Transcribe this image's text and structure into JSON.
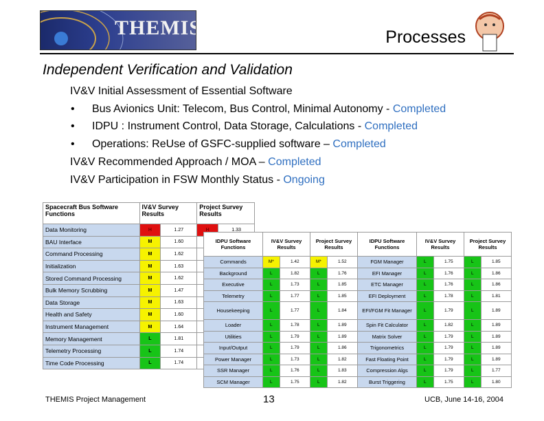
{
  "header": {
    "logo_text": "THEMIS",
    "slide_title": "Processes"
  },
  "subtitle": "Independent Verification and Validation",
  "body": {
    "line1": "IV&V Initial Assessment of Essential Software",
    "bullets": [
      {
        "text": "Bus Avionics Unit: Telecom, Bus Control, Minimal Autonomy",
        "sep": " - ",
        "status": "Completed"
      },
      {
        "text": "IDPU : Instrument Control, Data Storage, Calculations",
        "sep": " - ",
        "status": "Completed"
      },
      {
        "text": "Operations: ReUse of GSFC-supplied software",
        "sep": " – ",
        "status": "Completed"
      }
    ],
    "line2": {
      "text": "IV&V Recommended Approach / MOA",
      "sep": " – ",
      "status": "Completed"
    },
    "line3": {
      "text": "IV&V Participation in FSW Monthly Status",
      "sep": " - ",
      "status": "Ongoing"
    },
    "bullet_char": "•"
  },
  "table_bus": {
    "headers": [
      "Spacecraft Bus Software Functions",
      "IV&V Survey Results",
      "Project Survey Results"
    ],
    "rows": [
      {
        "name": "Data Monitoring",
        "ivv": "H",
        "ivv_val": "1.27",
        "proj": "H",
        "proj_val": "1.33"
      },
      {
        "name": "BAU Interface",
        "ivv": "M",
        "ivv_val": "1.60"
      },
      {
        "name": "Command Processing",
        "ivv": "M",
        "ivv_val": "1.62"
      },
      {
        "name": "Initialization",
        "ivv": "M",
        "ivv_val": "1.63"
      },
      {
        "name": "Stored Command Processing",
        "ivv": "M",
        "ivv_val": "1.62"
      },
      {
        "name": "Bulk Memory Scrubbing",
        "ivv": "M",
        "ivv_val": "1.47"
      },
      {
        "name": "Data Storage",
        "ivv": "M",
        "ivv_val": "1.63"
      },
      {
        "name": "Health and Safety",
        "ivv": "M",
        "ivv_val": "1.60"
      },
      {
        "name": "Instrument Management",
        "ivv": "M",
        "ivv_val": "1.64"
      },
      {
        "name": "Memory Management",
        "ivv": "L",
        "ivv_val": "1.81"
      },
      {
        "name": "Telemetry Processing",
        "ivv": "L",
        "ivv_val": "1.74"
      },
      {
        "name": "Time Code Processing",
        "ivv": "L",
        "ivv_val": "1.74"
      }
    ]
  },
  "table_idpu": {
    "headers": [
      "IDPU Software Functions",
      "IV&V Survey Results",
      "Project Survey Results",
      "IDPU Software Functions",
      "IV&V Survey Results",
      "Project Survey Results"
    ],
    "rows": [
      {
        "a": "Commands",
        "ar": "M*",
        "av": "1.42",
        "apr": "M*",
        "apv": "1.52",
        "b": "FGM Manager",
        "br": "L",
        "bv": "1.75",
        "bpr": "L",
        "bpv": "1.85"
      },
      {
        "a": "Background",
        "ar": "L",
        "av": "1.82",
        "apr": "L",
        "apv": "1.76",
        "b": "EFI Manager",
        "br": "L",
        "bv": "1.76",
        "bpr": "L",
        "bpv": "1.86"
      },
      {
        "a": "Executive",
        "ar": "L",
        "av": "1.73",
        "apr": "L",
        "apv": "1.85",
        "b": "ETC Manager",
        "br": "L",
        "bv": "1.76",
        "bpr": "L",
        "bpv": "1.86"
      },
      {
        "a": "Telemetry",
        "ar": "L",
        "av": "1.77",
        "apr": "L",
        "apv": "1.85",
        "b": "EFI Deployment",
        "br": "L",
        "bv": "1.78",
        "bpr": "L",
        "bpv": "1.81"
      },
      {
        "a": "Housekeeping",
        "ar": "L",
        "av": "1.77",
        "apr": "L",
        "apv": "1.84",
        "b": "EFI/FGM Fit Manager",
        "br": "L",
        "bv": "1.79",
        "bpr": "L",
        "bpv": "1.89",
        "tall": true
      },
      {
        "a": "Loader",
        "ar": "L",
        "av": "1.78",
        "apr": "L",
        "apv": "1.89",
        "b": "Spin Fit Calculator",
        "br": "L",
        "bv": "1.82",
        "bpr": "L",
        "bpv": "1.89"
      },
      {
        "a": "Utilities",
        "ar": "L",
        "av": "1.79",
        "apr": "L",
        "apv": "1.89",
        "b": "Matrix Solver",
        "br": "L",
        "bv": "1.79",
        "bpr": "L",
        "bpv": "1.89"
      },
      {
        "a": "Input/Output",
        "ar": "L",
        "av": "1.79",
        "apr": "L",
        "apv": "1.86",
        "b": "Trigonometrics",
        "br": "L",
        "bv": "1.79",
        "bpr": "L",
        "bpv": "1.89"
      },
      {
        "a": "Power Manager",
        "ar": "L",
        "av": "1.73",
        "apr": "L",
        "apv": "1.82",
        "b": "Fast Floating Point",
        "br": "L",
        "bv": "1.79",
        "bpr": "L",
        "bpv": "1.89"
      },
      {
        "a": "SSR Manager",
        "ar": "L",
        "av": "1.76",
        "apr": "L",
        "apv": "1.83",
        "b": "Compression Algs",
        "br": "L",
        "bv": "1.79",
        "bpr": "L",
        "bpv": "1.77"
      },
      {
        "a": "SCM Manager",
        "ar": "L",
        "av": "1.75",
        "apr": "L",
        "apv": "1.82",
        "b": "Burst Triggering",
        "br": "L",
        "bv": "1.75",
        "bpr": "L",
        "bpv": "1.80"
      }
    ]
  },
  "footer": {
    "left": "THEMIS Project Management",
    "page": "13",
    "right": "UCB, June 14-16, 2004"
  },
  "colors": {
    "high": "#e01010",
    "medium": "#f6f200",
    "low": "#17c417",
    "status_blue": "#2f6fc0"
  }
}
